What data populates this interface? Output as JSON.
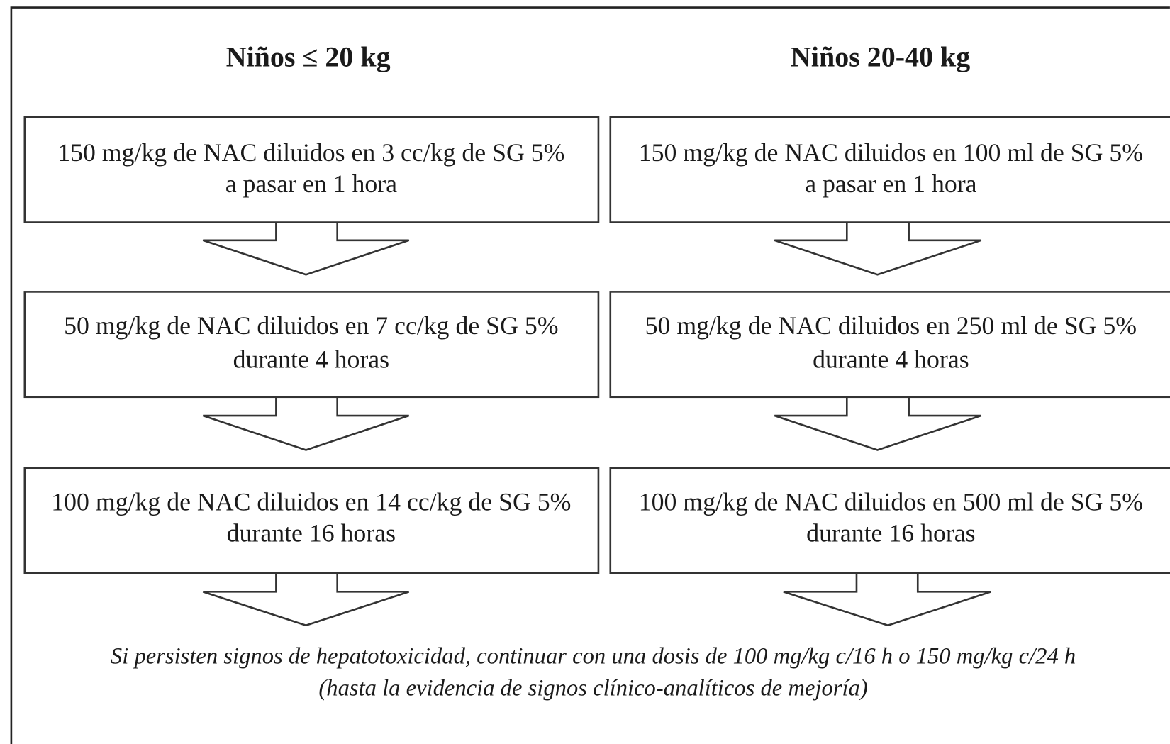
{
  "columns": [
    {
      "title": "Niños ≤ 20 kg",
      "steps": [
        {
          "lines": [
            "150 mg/kg de NAC diluidos en 3 cc/kg de SG 5%",
            "a pasar en 1 hora"
          ]
        },
        {
          "lines": [
            "50 mg/kg de NAC diluidos en 7 cc/kg de SG 5%",
            "durante 4 horas"
          ]
        },
        {
          "lines": [
            "100 mg/kg de NAC diluidos en 14 cc/kg de SG 5%",
            "durante 16 horas"
          ]
        }
      ]
    },
    {
      "title": "Niños 20-40 kg",
      "steps": [
        {
          "lines": [
            "150 mg/kg de NAC diluidos en 100 ml de SG 5%",
            "a pasar en 1 hora"
          ]
        },
        {
          "lines": [
            "50 mg/kg de NAC diluidos en 250 ml de SG 5%",
            "durante 4 horas"
          ]
        },
        {
          "lines": [
            "100 mg/kg de NAC diluidos en 500 ml de SG 5%",
            "durante 16 horas"
          ]
        }
      ]
    }
  ],
  "note": {
    "lines": [
      "Si persisten signos de hepatotoxicidad, continuar con una dosis de 100 mg/kg c/16 h o 150 mg/kg c/24 h",
      "(hasta la evidencia de signos clínico-analíticos de mejoría)"
    ]
  }
}
